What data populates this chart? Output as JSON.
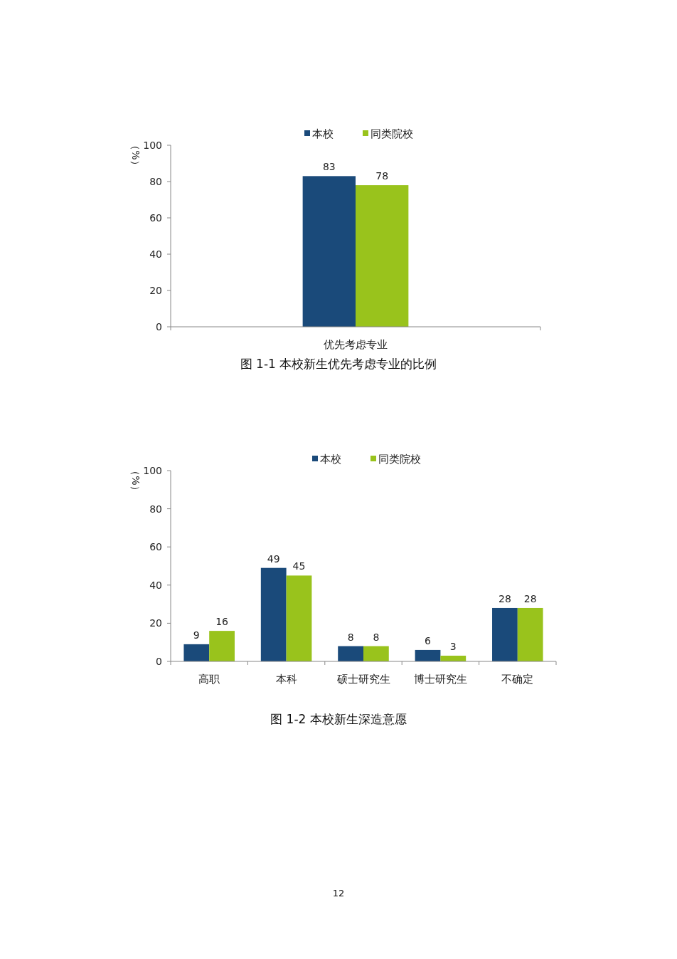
{
  "chart_data": [
    {
      "type": "bar",
      "categories": [
        "优先考虑专业"
      ],
      "ylabel": "（%）",
      "ylim": [
        0,
        100
      ],
      "yticks": [
        0,
        20,
        40,
        60,
        80,
        100
      ],
      "legend": "top",
      "data_labels": true,
      "annotations": [
        "图 1-1 本校新生优先考虑专业的比例"
      ],
      "series": [
        {
          "name": "本校",
          "color": "#1a4a7a",
          "values": [
            83
          ]
        },
        {
          "name": "同类院校",
          "color": "#99c31c",
          "values": [
            78
          ]
        }
      ]
    },
    {
      "type": "bar",
      "categories": [
        "高职",
        "本科",
        "硕士研究生",
        "博士研究生",
        "不确定"
      ],
      "ylabel": "（%）",
      "ylim": [
        0,
        100
      ],
      "yticks": [
        0,
        20,
        40,
        60,
        80,
        100
      ],
      "legend": "top",
      "data_labels": true,
      "annotations": [
        "图 1-2 本校新生深造意愿",
        "12"
      ],
      "series": [
        {
          "name": "本校",
          "color": "#1a4a7a",
          "values": [
            9,
            49,
            8,
            6,
            28
          ]
        },
        {
          "name": "同类院校",
          "color": "#99c31c",
          "values": [
            16,
            45,
            8,
            3,
            28
          ]
        }
      ]
    }
  ]
}
